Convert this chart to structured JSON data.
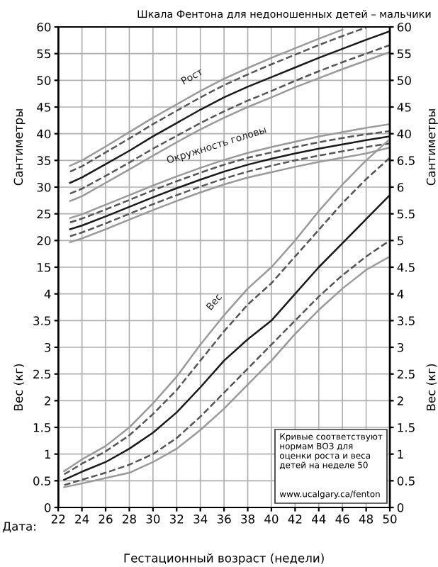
{
  "chart_data": [
    {
      "type": "line",
      "title": "Шкала Фентона для недоношенных детей – мальчики",
      "xlabel": "Гестационный возраст (недели)",
      "ylabel": "Сантиметры",
      "y2label": "Сантиметры",
      "xlim": [
        22,
        50
      ],
      "xticks": [
        22,
        24,
        26,
        28,
        30,
        32,
        34,
        36,
        38,
        40,
        42,
        44,
        46,
        48,
        50
      ],
      "ylim": [
        -30,
        60
      ],
      "yticks": [
        15,
        20,
        25,
        30,
        35,
        40,
        45,
        50,
        55,
        60
      ],
      "y2lim": [
        -30,
        60
      ],
      "y2ticks": [
        40,
        45,
        50,
        55,
        60
      ],
      "grid": true,
      "series": [
        {
          "name": "Рост",
          "color": "#9a9a9a",
          "line_style": "solid",
          "x": [
            23,
            24,
            26,
            28,
            30,
            32,
            34,
            36,
            38,
            40,
            42,
            44,
            46
          ],
          "values": [
            34,
            35,
            37.6,
            40.3,
            43,
            45.5,
            48,
            50.3,
            52.3,
            54.2,
            56,
            57.8,
            59.5
          ]
        },
        {
          "color": "#555555",
          "line_style": "dashed",
          "x": [
            23,
            24,
            26,
            28,
            30,
            32,
            34,
            36,
            38,
            40,
            42,
            44,
            46,
            48
          ],
          "values": [
            32.9,
            33.9,
            36.5,
            39.1,
            41.8,
            44.3,
            46.8,
            49.1,
            51.1,
            53,
            54.8,
            56.6,
            58.3,
            59.9
          ]
        },
        {
          "color": "#1a1a1a",
          "line_style": "solid",
          "x": [
            23,
            24,
            26,
            28,
            30,
            32,
            34,
            36,
            38,
            40,
            42,
            44,
            46,
            48,
            50
          ],
          "values": [
            30.8,
            31.8,
            34.3,
            36.8,
            39.5,
            42,
            44.5,
            46.8,
            48.8,
            50.6,
            52.4,
            54.2,
            55.9,
            57.6,
            59.2
          ]
        },
        {
          "color": "#555555",
          "line_style": "dashed",
          "x": [
            23,
            24,
            26,
            28,
            30,
            32,
            34,
            36,
            38,
            40,
            42,
            44,
            46,
            48,
            50
          ],
          "values": [
            28.8,
            29.7,
            32.1,
            34.6,
            37.2,
            39.6,
            42,
            44.2,
            46.2,
            48,
            49.9,
            51.7,
            53.4,
            55,
            56.6
          ]
        },
        {
          "color": "#9a9a9a",
          "line_style": "solid",
          "x": [
            23,
            24,
            26,
            28,
            30,
            32,
            34,
            36,
            38,
            40,
            42,
            44,
            46,
            48,
            50
          ],
          "values": [
            27.4,
            28.3,
            30.8,
            33.3,
            35.9,
            38.4,
            40.8,
            43,
            45,
            46.8,
            48.7,
            50.4,
            52.1,
            53.7,
            55.3
          ]
        },
        {
          "name": "Окружность головы",
          "color": "#9a9a9a",
          "line_style": "solid",
          "x": [
            23,
            24,
            26,
            28,
            30,
            32,
            34,
            36,
            38,
            40,
            42,
            44,
            46,
            48,
            50
          ],
          "values": [
            24.2,
            24.9,
            26.7,
            28.5,
            30.3,
            32,
            33.6,
            35.1,
            36.4,
            37.5,
            38.5,
            39.5,
            40.3,
            41.1,
            41.8
          ]
        },
        {
          "color": "#555555",
          "line_style": "dashed",
          "x": [
            23,
            24,
            26,
            28,
            30,
            32,
            34,
            36,
            38,
            40,
            42,
            44,
            46,
            48,
            50
          ],
          "values": [
            23.4,
            24.1,
            25.8,
            27.6,
            29.4,
            31.1,
            32.7,
            34.2,
            35.5,
            36.5,
            37.5,
            38.4,
            39.2,
            39.9,
            40.5
          ]
        },
        {
          "color": "#1a1a1a",
          "line_style": "solid",
          "x": [
            23,
            24,
            26,
            28,
            30,
            32,
            34,
            36,
            38,
            40,
            42,
            44,
            46,
            48,
            50
          ],
          "values": [
            22.1,
            22.8,
            24.5,
            26.3,
            28.1,
            29.8,
            31.4,
            32.9,
            34.2,
            35.3,
            36.3,
            37.2,
            38,
            38.8,
            39.5
          ]
        },
        {
          "color": "#555555",
          "line_style": "dashed",
          "x": [
            23,
            24,
            26,
            28,
            30,
            32,
            34,
            36,
            38,
            40,
            42,
            44,
            46,
            48,
            50
          ],
          "values": [
            20.8,
            21.5,
            23.2,
            25,
            26.8,
            28.5,
            30.1,
            31.6,
            32.9,
            34,
            35,
            35.9,
            36.7,
            37.5,
            38.2
          ]
        },
        {
          "color": "#9a9a9a",
          "line_style": "solid",
          "x": [
            23,
            24,
            26,
            28,
            30,
            32,
            34,
            36,
            38,
            40,
            42,
            44,
            46,
            48,
            50
          ],
          "values": [
            19.7,
            20.4,
            22.1,
            23.9,
            25.7,
            27.4,
            29,
            30.5,
            31.8,
            32.8,
            33.8,
            34.7,
            35.5,
            36.3,
            37.4
          ]
        }
      ]
    },
    {
      "type": "line",
      "ylabel": "Вес (кг)",
      "y2label": "Вес (кг)",
      "annotations": [
        "Дата:",
        "Кривые соответствуют нормам ВОЗ для оценки роста и веса детей на неделе 50",
        "www.ucalgary.ca/fenton"
      ],
      "xlim": [
        22,
        50
      ],
      "tick_labels": "y",
      "ylim": [
        0,
        9
      ],
      "yticks": [
        0,
        0.5,
        1,
        1.5,
        2,
        2.5,
        3,
        3.5,
        4
      ],
      "y2lim": [
        0,
        9
      ],
      "y2ticks": [
        0,
        0.5,
        1,
        1.5,
        2,
        2.5,
        3,
        3.5,
        4,
        4.5,
        5,
        5.5,
        6,
        6.5
      ],
      "grid": "y",
      "series": [
        {
          "name": "Вес",
          "color": "#9a9a9a",
          "line_style": "solid",
          "x": [
            22.5,
            24,
            26,
            28,
            30,
            32,
            34,
            36,
            38,
            40,
            42,
            44,
            46,
            48,
            50
          ],
          "values": [
            0.68,
            0.9,
            1.15,
            1.5,
            1.95,
            2.45,
            3.05,
            3.6,
            4.1,
            4.5,
            5,
            5.55,
            6.05,
            6.5,
            6.9
          ]
        },
        {
          "color": "#555555",
          "line_style": "dashed",
          "x": [
            22.5,
            24,
            26,
            28,
            30,
            32,
            34,
            36,
            38,
            40,
            42,
            44,
            46,
            48,
            50
          ],
          "values": [
            0.62,
            0.82,
            1.05,
            1.35,
            1.75,
            2.2,
            2.75,
            3.3,
            3.8,
            4.2,
            4.7,
            5.2,
            5.7,
            6.15,
            6.55
          ]
        },
        {
          "color": "#1a1a1a",
          "line_style": "solid",
          "x": [
            22.5,
            24,
            26,
            28,
            30,
            32,
            34,
            36,
            38,
            40,
            42,
            44,
            46,
            48,
            50
          ],
          "values": [
            0.52,
            0.67,
            0.85,
            1.1,
            1.4,
            1.78,
            2.25,
            2.75,
            3.15,
            3.5,
            4,
            4.5,
            4.95,
            5.4,
            5.85
          ]
        },
        {
          "color": "#555555",
          "line_style": "dashed",
          "x": [
            22.5,
            24,
            26,
            28,
            30,
            32,
            34,
            36,
            38,
            40,
            42,
            44,
            46,
            48,
            50
          ],
          "values": [
            0.42,
            0.52,
            0.65,
            0.8,
            1,
            1.3,
            1.7,
            2.15,
            2.6,
            3.05,
            3.5,
            3.95,
            4.35,
            4.7,
            5
          ]
        },
        {
          "color": "#9a9a9a",
          "line_style": "solid",
          "x": [
            22.5,
            24,
            26,
            28,
            30,
            32,
            34,
            36,
            38,
            40,
            42,
            44,
            46,
            48,
            50
          ],
          "values": [
            0.38,
            0.45,
            0.55,
            0.65,
            0.85,
            1.1,
            1.45,
            1.85,
            2.3,
            2.75,
            3.25,
            3.7,
            4.1,
            4.45,
            4.7
          ]
        }
      ]
    }
  ]
}
